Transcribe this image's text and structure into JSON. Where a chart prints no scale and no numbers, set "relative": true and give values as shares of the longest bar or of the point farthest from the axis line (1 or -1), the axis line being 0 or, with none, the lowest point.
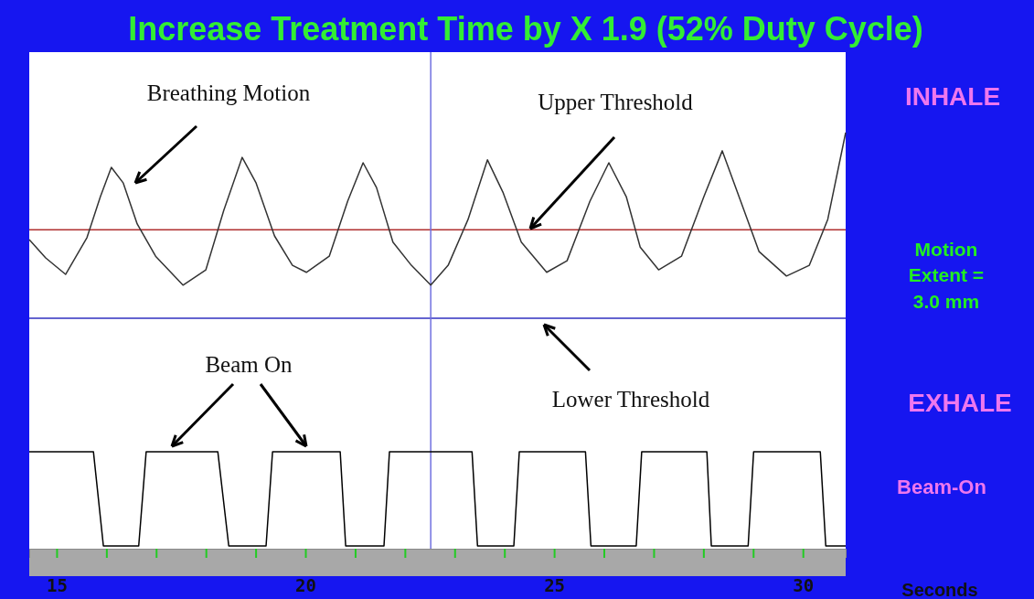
{
  "chart_data": {
    "type": "line",
    "title": "Increase Treatment Time by X 1.9 (52% Duty Cycle)",
    "xlabel": "Seconds",
    "relative": true,
    "xlim": [
      14.45,
      30.86
    ],
    "xticks": [
      15,
      {
        "value": 16,
        "label": null
      },
      {
        "value": 17,
        "label": null
      },
      {
        "value": 18,
        "label": null
      },
      {
        "value": 19,
        "label": null
      },
      20,
      {
        "value": 21,
        "label": null
      },
      {
        "value": 22,
        "label": null
      },
      {
        "value": 23,
        "label": null
      },
      {
        "value": 24,
        "label": null
      },
      25,
      {
        "value": 26,
        "label": null
      },
      {
        "value": 27,
        "label": null
      },
      {
        "value": 28,
        "label": null
      },
      {
        "value": 29,
        "label": null
      },
      30
    ],
    "grid": false,
    "marker": "none",
    "line_style": "solid",
    "series": [
      {
        "color": "#333333",
        "x": [
          14.45,
          14.78,
          15.18,
          15.61,
          15.88,
          16.1,
          16.34,
          16.62,
          16.99,
          17.54,
          18.0,
          18.36,
          18.73,
          19.01,
          19.38,
          19.74,
          20.02,
          20.48,
          20.85,
          21.16,
          21.43,
          21.76,
          22.13,
          22.52,
          22.87,
          23.27,
          23.66,
          23.97,
          24.34,
          24.85,
          25.26,
          25.72,
          26.1,
          26.45,
          26.73,
          27.1,
          27.56,
          28.01,
          28.38,
          28.75,
          29.12,
          29.67,
          30.13,
          30.5,
          30.86
        ],
        "values": [
          0.741,
          0.697,
          0.657,
          0.746,
          0.845,
          0.916,
          0.878,
          0.779,
          0.701,
          0.631,
          0.668,
          0.812,
          0.94,
          0.878,
          0.75,
          0.679,
          0.662,
          0.701,
          0.834,
          0.927,
          0.867,
          0.735,
          0.679,
          0.631,
          0.679,
          0.79,
          0.934,
          0.856,
          0.735,
          0.662,
          0.69,
          0.834,
          0.927,
          0.845,
          0.723,
          0.668,
          0.701,
          0.845,
          0.956,
          0.834,
          0.712,
          0.653,
          0.679,
          0.79,
          1.0
        ]
      },
      {
        "color": "#000000",
        "x": [
          14.45,
          15.74,
          15.94,
          16.65,
          16.8,
          18.24,
          18.46,
          19.21,
          19.34,
          20.7,
          20.81,
          21.58,
          21.69,
          23.35,
          23.46,
          24.19,
          24.3,
          25.63,
          25.74,
          26.65,
          26.76,
          28.07,
          28.16,
          28.9,
          29.01,
          30.35,
          30.46,
          30.86
        ],
        "values": [
          0.228,
          0.228,
          0,
          0,
          0.228,
          0.228,
          0,
          0,
          0.228,
          0.228,
          0,
          0,
          0.228,
          0.228,
          0,
          0,
          0.228,
          0.228,
          0,
          0,
          0.228,
          0.228,
          0,
          0,
          0.228,
          0.228,
          0,
          0
        ]
      }
    ],
    "ref_lines": [
      {
        "axis": "y",
        "value": 0.765,
        "color": "#b03030"
      },
      {
        "axis": "y",
        "value": 0.551,
        "color": "#3030c0"
      },
      {
        "axis": "x",
        "value": 22.52,
        "color": "#7070e0"
      }
    ],
    "annotations": [
      "Breathing Motion",
      "Upper Threshold",
      "Lower Threshold",
      "Beam On",
      "INHALE",
      "Motion Extent = 3.0 mm",
      "EXHALE",
      "Beam-On"
    ]
  }
}
